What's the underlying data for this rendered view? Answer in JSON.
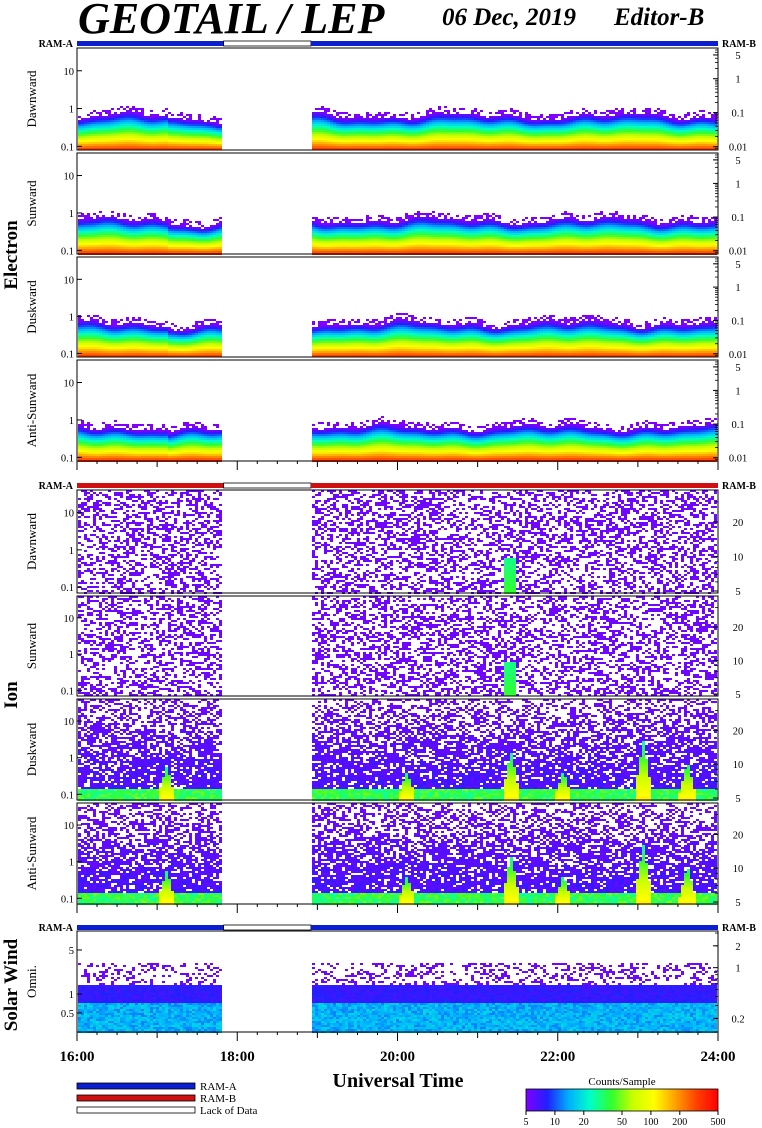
{
  "header": {
    "title": "GEOTAIL / LEP",
    "date": "06 Dec, 2019",
    "editor": "Editor-B"
  },
  "colors": {
    "ram_a": "#0b1fd0",
    "ram_b": "#d01010",
    "lack_of_data": "#ffffff"
  },
  "chart_data": {
    "type": "heatmap",
    "x_axis": {
      "label": "Universal Time",
      "range": [
        "16:00",
        "24:00"
      ],
      "range_hours": [
        16,
        24
      ],
      "ticks": [
        "16:00",
        "18:00",
        "20:00",
        "22:00",
        "24:00"
      ],
      "tick_hours": [
        16,
        18,
        20,
        22,
        24
      ]
    },
    "data_gap_hours": [
      17.83,
      18.92
    ],
    "mode_bars": [
      {
        "left_label": "RAM-A",
        "right_label": "RAM-B",
        "mode": "RAM-A"
      },
      {
        "left_label": "RAM-A",
        "right_label": "RAM-B",
        "mode": "RAM-B"
      },
      {
        "left_label": "RAM-A",
        "right_label": "RAM-B",
        "mode": "RAM-A"
      }
    ],
    "groups": [
      {
        "name": "Electron",
        "left_ticks": [
          "10",
          "1",
          "0.1"
        ],
        "left_tick_values": [
          10,
          1,
          0.1
        ],
        "left_range": [
          0.08,
          40
        ],
        "right_ticks": [
          "5",
          "1",
          "0.1",
          "0.01"
        ],
        "right_tick_values": [
          5,
          1,
          0.1,
          0.01
        ],
        "right_range": [
          0.008,
          8
        ],
        "panels": [
          {
            "label": "Dawnward",
            "profile": "electron"
          },
          {
            "label": "Sunward",
            "profile": "electron"
          },
          {
            "label": "Duskward",
            "profile": "electron"
          },
          {
            "label": "Anti-Sunward",
            "profile": "electron"
          }
        ]
      },
      {
        "name": "Ion",
        "left_ticks": [
          "10",
          "1",
          "0.1"
        ],
        "left_tick_values": [
          10,
          1,
          0.1
        ],
        "left_range": [
          0.07,
          40
        ],
        "right_ticks": [
          "20",
          "10",
          "5"
        ],
        "right_tick_values": [
          20,
          10,
          5
        ],
        "right_range": [
          4.8,
          38
        ],
        "panels": [
          {
            "label": "Dawnward",
            "profile": "ion-sparse"
          },
          {
            "label": "Sunward",
            "profile": "ion-sparse"
          },
          {
            "label": "Duskward",
            "profile": "ion-dense"
          },
          {
            "label": "Anti-Sunward",
            "profile": "ion-dense"
          }
        ]
      },
      {
        "name": "Solar Wind",
        "left_ticks": [
          "5",
          "1",
          "0.5"
        ],
        "left_tick_values": [
          5,
          1,
          0.5
        ],
        "left_range": [
          0.25,
          10
        ],
        "right_ticks": [
          "2",
          "1",
          "0.2"
        ],
        "right_tick_values": [
          2,
          1,
          0.2
        ],
        "right_range": [
          0.13,
          3.2
        ],
        "panels": [
          {
            "label": "Omni.",
            "profile": "solar-wind"
          }
        ]
      }
    ],
    "colorbar": {
      "title": "Counts/Sample",
      "ticks": [
        "5",
        "10",
        "20",
        "50",
        "100",
        "200",
        "500"
      ],
      "tick_values": [
        5,
        10,
        20,
        50,
        100,
        200,
        500
      ],
      "range": [
        5,
        500
      ],
      "scale": "log",
      "colors": [
        "#8000ff",
        "#2020ff",
        "#00b0ff",
        "#00ffc8",
        "#30ff30",
        "#c8ff00",
        "#ffff00",
        "#ffa000",
        "#ff4000",
        "#ff0000"
      ]
    },
    "legend": {
      "placement": "bottom-left",
      "items": [
        {
          "label": "RAM-A",
          "mode": "RAM-A"
        },
        {
          "label": "RAM-B",
          "mode": "RAM-B"
        },
        {
          "label": "Lack of Data",
          "mode": "LACK"
        }
      ]
    }
  }
}
